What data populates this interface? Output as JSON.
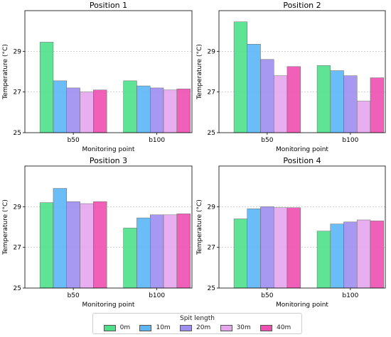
{
  "chart_data": [
    {
      "type": "bar",
      "title": "Position 1",
      "xlabel": "Monitoring point",
      "ylabel": "Temperature (°C)",
      "categories": [
        "b50",
        "b100"
      ],
      "ylim": [
        25,
        31
      ],
      "yticks": [
        25,
        27,
        29
      ],
      "grid": "y dashed",
      "series": [
        {
          "name": "0m",
          "values": [
            29.45,
            27.55
          ]
        },
        {
          "name": "10m",
          "values": [
            27.55,
            27.3
          ]
        },
        {
          "name": "20m",
          "values": [
            27.2,
            27.2
          ]
        },
        {
          "name": "30m",
          "values": [
            27.0,
            27.1
          ]
        },
        {
          "name": "40m",
          "values": [
            27.1,
            27.15
          ]
        }
      ]
    },
    {
      "type": "bar",
      "title": "Position 2",
      "xlabel": "Monitoring point",
      "ylabel": "Temperature (°C)",
      "categories": [
        "b50",
        "b100"
      ],
      "ylim": [
        25,
        31
      ],
      "yticks": [
        25,
        27,
        29
      ],
      "grid": "y dashed",
      "series": [
        {
          "name": "0m",
          "values": [
            30.45,
            28.3
          ]
        },
        {
          "name": "10m",
          "values": [
            29.35,
            28.05
          ]
        },
        {
          "name": "20m",
          "values": [
            28.6,
            27.8
          ]
        },
        {
          "name": "30m",
          "values": [
            27.8,
            26.55
          ]
        },
        {
          "name": "40m",
          "values": [
            28.25,
            27.7
          ]
        }
      ]
    },
    {
      "type": "bar",
      "title": "Position 3",
      "xlabel": "Monitoring point",
      "ylabel": "Temperature (°C)",
      "categories": [
        "b50",
        "b100"
      ],
      "ylim": [
        25,
        31
      ],
      "yticks": [
        25,
        27,
        29
      ],
      "grid": "y dashed",
      "series": [
        {
          "name": "0m",
          "values": [
            29.2,
            27.95
          ]
        },
        {
          "name": "10m",
          "values": [
            29.9,
            28.45
          ]
        },
        {
          "name": "20m",
          "values": [
            29.25,
            28.6
          ]
        },
        {
          "name": "30m",
          "values": [
            29.15,
            28.6
          ]
        },
        {
          "name": "40m",
          "values": [
            29.25,
            28.65
          ]
        }
      ]
    },
    {
      "type": "bar",
      "title": "Position 4",
      "xlabel": "Monitoring point",
      "ylabel": "Temperature (°C)",
      "categories": [
        "b50",
        "b100"
      ],
      "ylim": [
        25,
        31
      ],
      "yticks": [
        25,
        27,
        29
      ],
      "grid": "y dashed",
      "series": [
        {
          "name": "0m",
          "values": [
            28.4,
            27.8
          ]
        },
        {
          "name": "10m",
          "values": [
            28.9,
            28.15
          ]
        },
        {
          "name": "20m",
          "values": [
            29.0,
            28.25
          ]
        },
        {
          "name": "30m",
          "values": [
            28.95,
            28.35
          ]
        },
        {
          "name": "40m",
          "values": [
            28.95,
            28.3
          ]
        }
      ]
    }
  ],
  "legend": {
    "title": "Spit length",
    "placement": "bottom-center",
    "items": [
      {
        "label": "0m",
        "color": "#4ee089"
      },
      {
        "label": "10m",
        "color": "#5bb6f7"
      },
      {
        "label": "20m",
        "color": "#9d8ef0"
      },
      {
        "label": "30m",
        "color": "#e6a6ee"
      },
      {
        "label": "40m",
        "color": "#ef4fb0"
      }
    ]
  }
}
